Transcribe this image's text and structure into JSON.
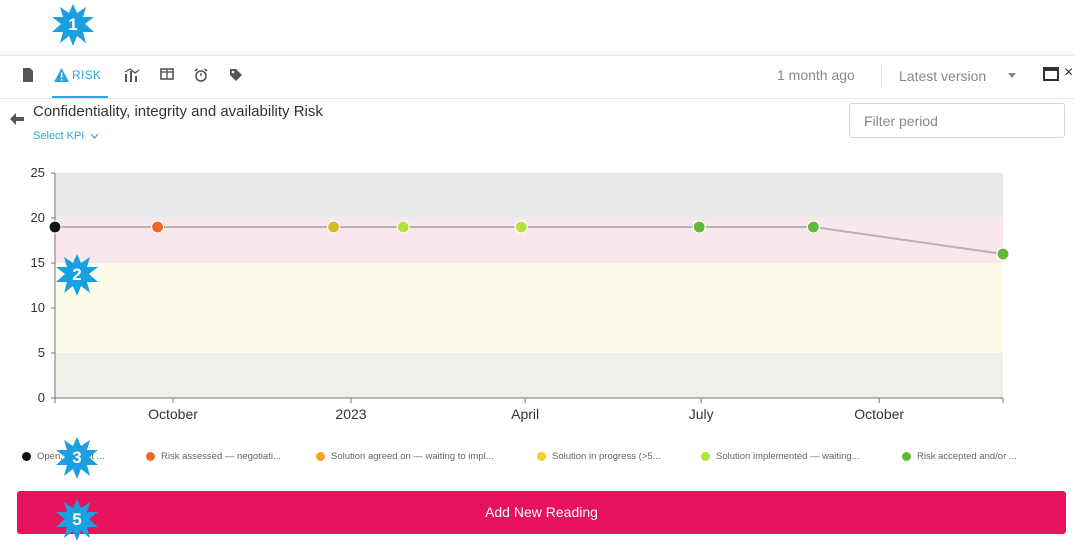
{
  "badges": [
    {
      "label": "1"
    },
    {
      "label": "2"
    },
    {
      "label": "3"
    },
    {
      "label": "5"
    }
  ],
  "toolbar": {
    "active_tab_label": "RISK",
    "icons": [
      "document-icon",
      "warning-icon",
      "bar-chart-icon",
      "table-icon",
      "alarm-icon",
      "tag-icon"
    ],
    "updated_ago": "1 month ago",
    "version_label": "Latest version"
  },
  "header": {
    "title": "Confidentiality, integrity and availability Risk",
    "select_kpi_label": "Select KPI",
    "filter_placeholder": "Filter period"
  },
  "colors": {
    "accent": "#2aa6df",
    "button": "#e6125d",
    "band_top": "#ebebeb",
    "band_high": "#f8e8ee",
    "band_mid": "#fdfbea",
    "band_low": "#eef2ea",
    "line": "#b9b1b6"
  },
  "chart_data": {
    "type": "line",
    "y_ticks": [
      "25",
      "20",
      "15",
      "10",
      "5",
      "0"
    ],
    "ylim": [
      0,
      25
    ],
    "bands": [
      {
        "from": 20,
        "to": 25,
        "color": "#ebebeb"
      },
      {
        "from": 15,
        "to": 20,
        "color": "#f8e8ee"
      },
      {
        "from": 5,
        "to": 15,
        "color": "#fdfbea"
      },
      {
        "from": 0,
        "to": 5,
        "color": "#eef2ea"
      }
    ],
    "x_range": [
      "2022-08-01",
      "2023-12-04"
    ],
    "x_ticks": [
      {
        "label": "October",
        "date": "2022-10-01"
      },
      {
        "label": "2023",
        "date": "2023-01-01"
      },
      {
        "label": "April",
        "date": "2023-04-01"
      },
      {
        "label": "July",
        "date": "2023-07-01"
      },
      {
        "label": "October",
        "date": "2023-10-01"
      }
    ],
    "points": [
      {
        "date": "2022-08-01",
        "y": 19,
        "color": "#111111"
      },
      {
        "date": "2022-09-23",
        "y": 19,
        "color": "#f06a24"
      },
      {
        "date": "2022-12-23",
        "y": 19,
        "color": "#d8b92c"
      },
      {
        "date": "2023-01-28",
        "y": 19,
        "color": "#b5e33a"
      },
      {
        "date": "2023-03-30",
        "y": 19,
        "color": "#b5e33a"
      },
      {
        "date": "2023-06-30",
        "y": 19,
        "color": "#63b739"
      },
      {
        "date": "2023-08-28",
        "y": 19,
        "color": "#63b739"
      },
      {
        "date": "2023-12-04",
        "y": 16,
        "color": "#63b739"
      }
    ]
  },
  "legend": [
    {
      "label": "Open, not yet ...",
      "color": "#111111"
    },
    {
      "label": "Risk assessed — negotiati...",
      "color": "#f06a24"
    },
    {
      "label": "Solution agreed on — waiting to impl...",
      "color": "#f4a420"
    },
    {
      "label": "Solution in progress (>5...",
      "color": "#f3cf2b"
    },
    {
      "label": "Solution implemented — waiting...",
      "color": "#b5e33a"
    },
    {
      "label": "Risk accepted and/or ...",
      "color": "#63b739"
    }
  ],
  "actions": {
    "add_reading_label": "Add New Reading"
  }
}
